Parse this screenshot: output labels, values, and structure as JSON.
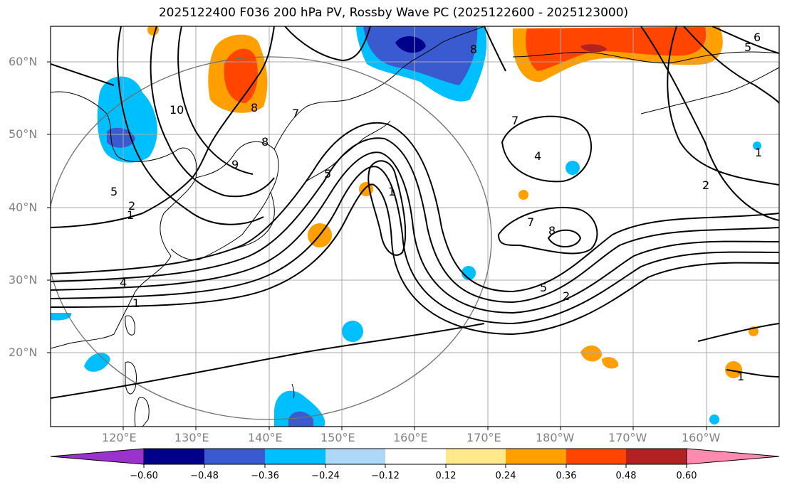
{
  "title": "2025122400 F036 200 hPa PV, Rossby Wave PC (2025122600 - 2025123000)",
  "lat_labels": [
    "60°N",
    "50°N",
    "40°N",
    "30°N",
    "20°N"
  ],
  "lon_labels": [
    "120°E",
    "130°E",
    "140°E",
    "150°E",
    "160°E",
    "170°E",
    "180°W",
    "170°W",
    "160°W"
  ],
  "contour_labels": [
    "10",
    "9",
    "8",
    "7",
    "5",
    "4",
    "2",
    "1",
    "1",
    "7",
    "8",
    "7",
    "8",
    "5",
    "2",
    "2",
    "1",
    "6",
    "5",
    "1",
    "5",
    "1",
    "8",
    "4"
  ],
  "colorbar": {
    "ticks": [
      "−0.60",
      "−0.48",
      "−0.36",
      "−0.24",
      "−0.12",
      "0.12",
      "0.24",
      "0.36",
      "0.48",
      "0.60"
    ],
    "colors": [
      "#9933cc",
      "#00008b",
      "#3a5bd0",
      "#00bfff",
      "#add8f7",
      "#ffffff",
      "#ffe98a",
      "#ffa000",
      "#ff4500",
      "#b22222",
      "#ff8ab0"
    ]
  }
}
